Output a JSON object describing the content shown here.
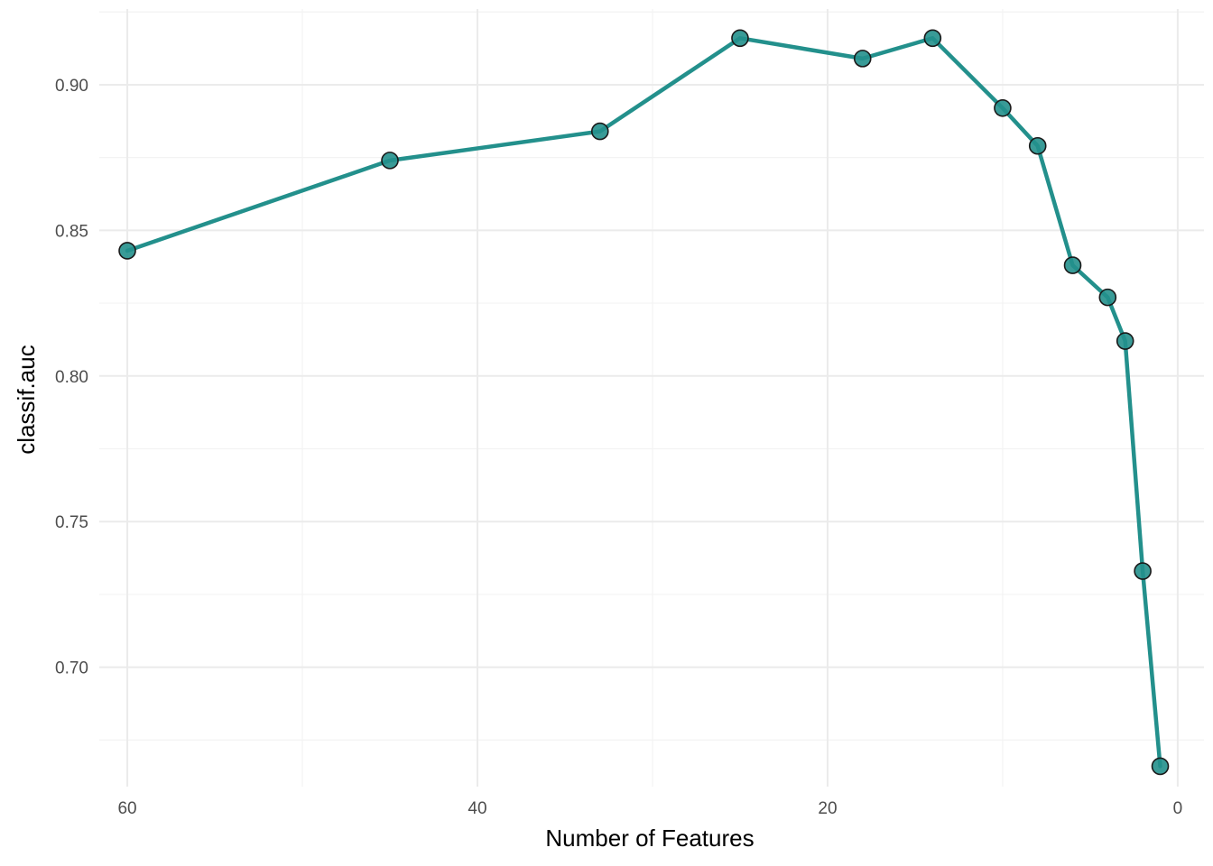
{
  "chart_data": {
    "type": "line",
    "title": "",
    "xlabel": "Number of Features",
    "ylabel": "classif.auc",
    "x_reversed": true,
    "xlim": [
      -1.5,
      61.6
    ],
    "ylim": [
      0.659,
      0.926
    ],
    "x_ticks": [
      60,
      40,
      20,
      0
    ],
    "x_tick_labels": [
      "60",
      "40",
      "20",
      "0"
    ],
    "x_minor_ticks": [
      50,
      30,
      10
    ],
    "y_ticks": [
      0.7,
      0.75,
      0.8,
      0.85,
      0.9
    ],
    "y_tick_labels": [
      "0.70",
      "0.75",
      "0.80",
      "0.85",
      "0.90"
    ],
    "y_minor_ticks": [
      0.675,
      0.725,
      0.775,
      0.825,
      0.875,
      0.925
    ],
    "grid": true,
    "legend": "none",
    "colors": {
      "line": "#23908c",
      "point_fill": "#23908c",
      "point_stroke": "#1a1a1a",
      "grid_major": "#ebebeb",
      "grid_minor": "#f3f3f3"
    },
    "series": [
      {
        "x": [
          60,
          45,
          33,
          25,
          18,
          14,
          10,
          8,
          6,
          4,
          3,
          2,
          1
        ],
        "y": [
          0.843,
          0.874,
          0.884,
          0.916,
          0.909,
          0.916,
          0.892,
          0.879,
          0.838,
          0.827,
          0.812,
          0.733,
          0.666
        ]
      }
    ]
  }
}
